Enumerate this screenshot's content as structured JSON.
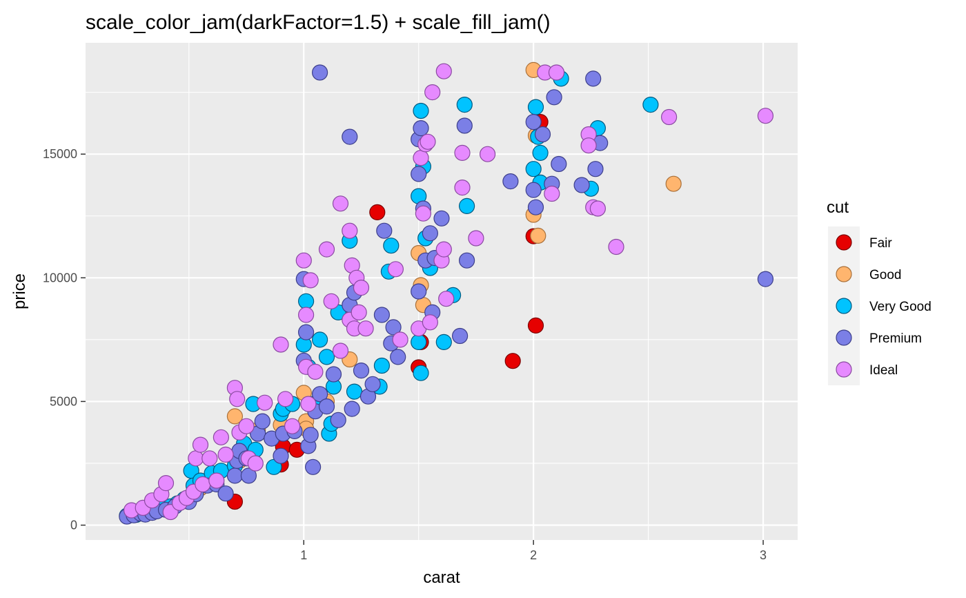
{
  "chart_data": {
    "type": "scatter",
    "title": "scale_color_jam(darkFactor=1.5) + scale_fill_jam()",
    "xlabel": "carat",
    "ylabel": "price",
    "xlim": [
      0.05,
      3.15
    ],
    "ylim": [
      -600,
      19500
    ],
    "xticks": [
      1,
      2,
      3
    ],
    "xtick_labels": [
      "1",
      "2",
      "3"
    ],
    "yticks": [
      0,
      5000,
      10000,
      15000
    ],
    "ytick_labels": [
      "0",
      "5000",
      "10000",
      "15000"
    ],
    "grid": true,
    "legend": {
      "title": "cut",
      "position": "right"
    },
    "background": "#ebebeb",
    "series": [
      {
        "name": "Fair",
        "fill": "#e60000",
        "stroke": "#7a0000",
        "points": [
          [
            0.7,
            950
          ],
          [
            0.9,
            2450
          ],
          [
            0.91,
            3170
          ],
          [
            0.97,
            3050
          ],
          [
            1.32,
            12650
          ],
          [
            1.5,
            6380
          ],
          [
            1.51,
            7400
          ],
          [
            1.91,
            6640
          ],
          [
            2.0,
            11680
          ],
          [
            2.01,
            8070
          ],
          [
            2.03,
            16300
          ]
        ]
      },
      {
        "name": "Good",
        "fill": "#ffb56e",
        "stroke": "#a8703a",
        "points": [
          [
            0.33,
            560
          ],
          [
            0.37,
            620
          ],
          [
            0.43,
            700
          ],
          [
            0.5,
            960
          ],
          [
            0.55,
            1500
          ],
          [
            0.61,
            1820
          ],
          [
            0.7,
            4400
          ],
          [
            0.72,
            2600
          ],
          [
            0.73,
            3050
          ],
          [
            0.8,
            3850
          ],
          [
            0.9,
            4050
          ],
          [
            1.0,
            5350
          ],
          [
            1.01,
            4200
          ],
          [
            1.01,
            3900
          ],
          [
            1.1,
            5000
          ],
          [
            1.2,
            6700
          ],
          [
            1.5,
            11000
          ],
          [
            1.51,
            9700
          ],
          [
            1.52,
            8900
          ],
          [
            2.0,
            18400
          ],
          [
            2.0,
            12550
          ],
          [
            2.01,
            15750
          ],
          [
            2.02,
            11700
          ],
          [
            2.61,
            13800
          ]
        ]
      },
      {
        "name": "Very Good",
        "fill": "#00c3ff",
        "stroke": "#005a80",
        "points": [
          [
            0.23,
            380
          ],
          [
            0.27,
            420
          ],
          [
            0.3,
            480
          ],
          [
            0.32,
            520
          ],
          [
            0.35,
            610
          ],
          [
            0.38,
            700
          ],
          [
            0.42,
            760
          ],
          [
            0.45,
            880
          ],
          [
            0.48,
            1050
          ],
          [
            0.51,
            2200
          ],
          [
            0.52,
            1600
          ],
          [
            0.55,
            1800
          ],
          [
            0.6,
            2100
          ],
          [
            0.64,
            2200
          ],
          [
            0.7,
            2400
          ],
          [
            0.71,
            2800
          ],
          [
            0.74,
            3300
          ],
          [
            0.78,
            4900
          ],
          [
            0.79,
            3050
          ],
          [
            0.8,
            3700
          ],
          [
            0.87,
            2350
          ],
          [
            0.9,
            4500
          ],
          [
            0.91,
            4700
          ],
          [
            0.95,
            4900
          ],
          [
            1.0,
            7300
          ],
          [
            1.01,
            9050
          ],
          [
            1.02,
            6400
          ],
          [
            1.04,
            4900
          ],
          [
            1.07,
            7500
          ],
          [
            1.1,
            6800
          ],
          [
            1.11,
            3700
          ],
          [
            1.12,
            4100
          ],
          [
            1.13,
            5600
          ],
          [
            1.15,
            8600
          ],
          [
            1.2,
            11500
          ],
          [
            1.22,
            5400
          ],
          [
            1.33,
            5600
          ],
          [
            1.34,
            6450
          ],
          [
            1.37,
            10250
          ],
          [
            1.38,
            11300
          ],
          [
            1.5,
            7400
          ],
          [
            1.5,
            13300
          ],
          [
            1.51,
            6150
          ],
          [
            1.51,
            16750
          ],
          [
            1.52,
            14500
          ],
          [
            1.53,
            11600
          ],
          [
            1.55,
            10400
          ],
          [
            1.61,
            7400
          ],
          [
            1.65,
            9300
          ],
          [
            1.7,
            17000
          ],
          [
            1.71,
            12900
          ],
          [
            2.0,
            14400
          ],
          [
            2.01,
            16900
          ],
          [
            2.02,
            15700
          ],
          [
            2.03,
            15050
          ],
          [
            2.03,
            13850
          ],
          [
            2.12,
            18050
          ],
          [
            2.25,
            13600
          ],
          [
            2.28,
            16050
          ],
          [
            2.51,
            17000
          ]
        ]
      },
      {
        "name": "Premium",
        "fill": "#7b7fe6",
        "stroke": "#3d3f8a",
        "points": [
          [
            0.23,
            350
          ],
          [
            0.26,
            400
          ],
          [
            0.29,
            470
          ],
          [
            0.31,
            430
          ],
          [
            0.34,
            500
          ],
          [
            0.36,
            560
          ],
          [
            0.4,
            620
          ],
          [
            0.44,
            760
          ],
          [
            0.5,
            940
          ],
          [
            0.53,
            1250
          ],
          [
            0.58,
            1600
          ],
          [
            0.62,
            1650
          ],
          [
            0.66,
            1280
          ],
          [
            0.7,
            2000
          ],
          [
            0.71,
            2600
          ],
          [
            0.72,
            3000
          ],
          [
            0.75,
            2700
          ],
          [
            0.76,
            2000
          ],
          [
            0.8,
            3700
          ],
          [
            0.82,
            4200
          ],
          [
            0.86,
            3500
          ],
          [
            0.9,
            2800
          ],
          [
            0.91,
            3700
          ],
          [
            0.96,
            3800
          ],
          [
            1.0,
            6650
          ],
          [
            1.0,
            9950
          ],
          [
            1.01,
            7800
          ],
          [
            1.02,
            3200
          ],
          [
            1.03,
            3650
          ],
          [
            1.04,
            2350
          ],
          [
            1.05,
            4600
          ],
          [
            1.07,
            18300
          ],
          [
            1.07,
            5300
          ],
          [
            1.1,
            4800
          ],
          [
            1.13,
            6100
          ],
          [
            1.15,
            4250
          ],
          [
            1.2,
            15700
          ],
          [
            1.2,
            8900
          ],
          [
            1.21,
            4700
          ],
          [
            1.22,
            9400
          ],
          [
            1.25,
            6250
          ],
          [
            1.28,
            5200
          ],
          [
            1.3,
            5700
          ],
          [
            1.34,
            8500
          ],
          [
            1.35,
            11900
          ],
          [
            1.38,
            7350
          ],
          [
            1.39,
            8000
          ],
          [
            1.41,
            6800
          ],
          [
            1.5,
            9450
          ],
          [
            1.5,
            14200
          ],
          [
            1.5,
            15600
          ],
          [
            1.51,
            16050
          ],
          [
            1.52,
            12800
          ],
          [
            1.53,
            10700
          ],
          [
            1.55,
            11800
          ],
          [
            1.56,
            8600
          ],
          [
            1.57,
            10800
          ],
          [
            1.6,
            12400
          ],
          [
            1.68,
            7650
          ],
          [
            1.7,
            16150
          ],
          [
            1.71,
            10700
          ],
          [
            1.9,
            13900
          ],
          [
            2.0,
            16300
          ],
          [
            2.0,
            13550
          ],
          [
            2.01,
            12850
          ],
          [
            2.04,
            15800
          ],
          [
            2.08,
            13800
          ],
          [
            2.09,
            17300
          ],
          [
            2.11,
            14600
          ],
          [
            2.21,
            13750
          ],
          [
            2.26,
            18050
          ],
          [
            2.27,
            14400
          ],
          [
            2.29,
            15450
          ],
          [
            3.01,
            9950
          ]
        ]
      },
      {
        "name": "Ideal",
        "fill": "#e68aff",
        "stroke": "#8a4aa0",
        "points": [
          [
            0.25,
            600
          ],
          [
            0.3,
            700
          ],
          [
            0.34,
            1000
          ],
          [
            0.38,
            1250
          ],
          [
            0.4,
            1700
          ],
          [
            0.42,
            530
          ],
          [
            0.46,
            900
          ],
          [
            0.49,
            1100
          ],
          [
            0.52,
            1350
          ],
          [
            0.53,
            2700
          ],
          [
            0.55,
            3250
          ],
          [
            0.56,
            1650
          ],
          [
            0.59,
            2700
          ],
          [
            0.62,
            1800
          ],
          [
            0.64,
            3550
          ],
          [
            0.66,
            2850
          ],
          [
            0.7,
            5550
          ],
          [
            0.71,
            5100
          ],
          [
            0.72,
            3750
          ],
          [
            0.75,
            4000
          ],
          [
            0.76,
            2700
          ],
          [
            0.79,
            2500
          ],
          [
            0.83,
            4950
          ],
          [
            0.9,
            7300
          ],
          [
            0.92,
            5100
          ],
          [
            0.95,
            4000
          ],
          [
            1.0,
            10700
          ],
          [
            1.01,
            8500
          ],
          [
            1.01,
            6400
          ],
          [
            1.02,
            4900
          ],
          [
            1.03,
            9900
          ],
          [
            1.05,
            6200
          ],
          [
            1.1,
            11150
          ],
          [
            1.12,
            9050
          ],
          [
            1.16,
            7050
          ],
          [
            1.16,
            13000
          ],
          [
            1.2,
            11900
          ],
          [
            1.2,
            8300
          ],
          [
            1.21,
            10500
          ],
          [
            1.22,
            7950
          ],
          [
            1.23,
            10000
          ],
          [
            1.24,
            8600
          ],
          [
            1.25,
            9600
          ],
          [
            1.27,
            7950
          ],
          [
            1.4,
            10350
          ],
          [
            1.42,
            7500
          ],
          [
            1.5,
            7950
          ],
          [
            1.51,
            14850
          ],
          [
            1.52,
            12600
          ],
          [
            1.53,
            15400
          ],
          [
            1.54,
            15500
          ],
          [
            1.55,
            8200
          ],
          [
            1.56,
            17500
          ],
          [
            1.6,
            10700
          ],
          [
            1.61,
            11150
          ],
          [
            1.61,
            18350
          ],
          [
            1.62,
            9150
          ],
          [
            1.69,
            15050
          ],
          [
            1.69,
            13650
          ],
          [
            1.75,
            11600
          ],
          [
            1.8,
            15000
          ],
          [
            2.05,
            18300
          ],
          [
            2.08,
            13400
          ],
          [
            2.1,
            18300
          ],
          [
            2.24,
            15800
          ],
          [
            2.24,
            15350
          ],
          [
            2.26,
            12850
          ],
          [
            2.28,
            12800
          ],
          [
            2.36,
            11250
          ],
          [
            2.59,
            16500
          ],
          [
            3.01,
            16550
          ]
        ]
      }
    ]
  }
}
